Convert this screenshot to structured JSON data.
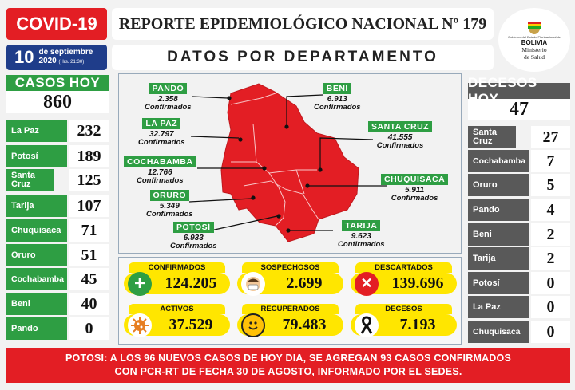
{
  "header": {
    "covid_label": "COVID-19",
    "title": "REPORTE EPIDEMIOLÓGICO NACIONAL Nº 179",
    "subtitle": "DATOS POR DEPARTAMENTO",
    "date_day": "10",
    "date_text": "de septiembre",
    "date_year": "2020",
    "date_time": "(Hrs. 21:30)"
  },
  "logo": {
    "line1": "Gobierno del Estado Plurinacional de",
    "line2": "BOLIVIA",
    "line3": "Ministerio",
    "line4": "de Salud"
  },
  "casos_hoy": {
    "title": "CASOS HOY",
    "total": "860",
    "rows": [
      {
        "label": "La Paz",
        "value": "232"
      },
      {
        "label": "Potosí",
        "value": "189"
      },
      {
        "label": "Santa Cruz",
        "value": "125"
      },
      {
        "label": "Tarija",
        "value": "107"
      },
      {
        "label": "Chuquisaca",
        "value": "71"
      },
      {
        "label": "Oruro",
        "value": "51"
      },
      {
        "label": "Cochabamba",
        "value": "45"
      },
      {
        "label": "Beni",
        "value": "40"
      },
      {
        "label": "Pando",
        "value": "0"
      }
    ]
  },
  "decesos_hoy": {
    "title": "DECESOS HOY",
    "total": "47",
    "rows": [
      {
        "label": "Santa Cruz",
        "value": "27"
      },
      {
        "label": "Cochabamba",
        "value": "7"
      },
      {
        "label": "Oruro",
        "value": "5"
      },
      {
        "label": "Pando",
        "value": "4"
      },
      {
        "label": "Beni",
        "value": "2"
      },
      {
        "label": "Tarija",
        "value": "2"
      },
      {
        "label": "Potosí",
        "value": "0"
      },
      {
        "label": "La Paz",
        "value": "0"
      },
      {
        "label": "Chuquisaca",
        "value": "0"
      }
    ]
  },
  "map": {
    "confirmed_word": "Confirmados",
    "departments": [
      {
        "name": "PANDO",
        "value": "2.358"
      },
      {
        "name": "BENI",
        "value": "6.913"
      },
      {
        "name": "LA PAZ",
        "value": "32.797"
      },
      {
        "name": "SANTA CRUZ",
        "value": "41.555"
      },
      {
        "name": "COCHABAMBA",
        "value": "12.766"
      },
      {
        "name": "CHUQUISACA",
        "value": "5.911"
      },
      {
        "name": "ORURO",
        "value": "5.349"
      },
      {
        "name": "POTOSÍ",
        "value": "6.933"
      },
      {
        "name": "TARIJA",
        "value": "9.623"
      }
    ]
  },
  "totals": [
    {
      "label": "CONFIRMADOS",
      "value": "124.205",
      "icon": "plus-icon"
    },
    {
      "label": "SOSPECHOSOS",
      "value": "2.699",
      "icon": "masked-face-icon"
    },
    {
      "label": "DESCARTADOS",
      "value": "139.696",
      "icon": "x-icon"
    },
    {
      "label": "ACTIVOS",
      "value": "37.529",
      "icon": "virus-icon"
    },
    {
      "label": "RECUPERADOS",
      "value": "79.483",
      "icon": "smile-icon"
    },
    {
      "label": "DECESOS",
      "value": "7.193",
      "icon": "mourning-ribbon-icon"
    }
  ],
  "footer": {
    "line1": "POTOSI: A LOS 96 NUEVOS CASOS DE HOY DIA, SE AGREGAN 93 CASOS CONFIRMADOS",
    "line2": "CON PCR-RT DE FECHA 30 DE AGOSTO, INFORMADO POR EL SEDES."
  },
  "colors": {
    "red": "#e31e24",
    "green": "#2e9e43",
    "gray": "#595959",
    "yellow": "#ffe600"
  }
}
